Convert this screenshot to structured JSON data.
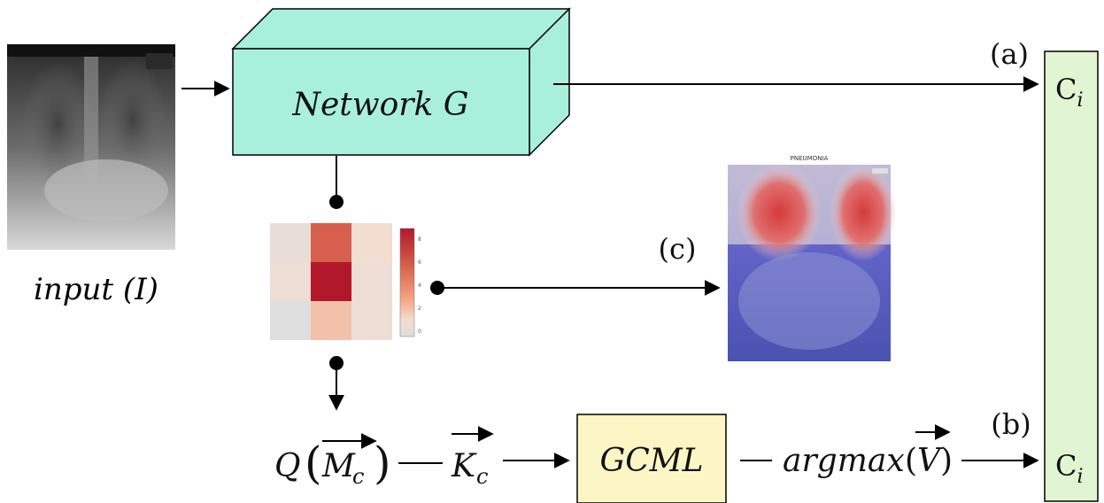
{
  "input_label": {
    "italic": "input",
    "open": "(",
    "var": "I",
    "close": ")"
  },
  "network": {
    "label": "Network G",
    "color": "#a8f0dc"
  },
  "classifier_label": {
    "letter": "C",
    "subscript": "i",
    "color": "#e2f5d2"
  },
  "branch_labels": {
    "a": "(a)",
    "b": "(b)",
    "c": "(c)"
  },
  "heatmap": {
    "cells": [
      [
        1,
        6,
        2
      ],
      [
        1.5,
        8,
        1.5
      ],
      [
        0,
        3,
        1.5
      ]
    ],
    "colorbar_ticks": [
      "8",
      "6",
      "4",
      "2",
      "0"
    ]
  },
  "overlay_image": {
    "title": "PNEUMONIA"
  },
  "pipeline": {
    "q_func": "Q",
    "m_vec": "M",
    "m_sub": "c",
    "k_vec": "K",
    "k_sub": "c",
    "gcml": "GCML",
    "gcml_color": "#fbf6c3",
    "argmax": "argmax",
    "v_vec": "V"
  }
}
